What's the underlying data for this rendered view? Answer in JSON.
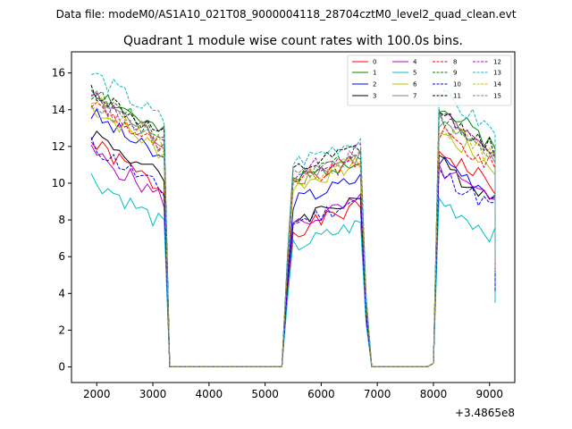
{
  "figure": {
    "suptitle": "Data file: modeM0/AS1A10_021T08_9000004118_28704cztM0_level2_quad_clean.evt"
  },
  "chart_data": {
    "type": "line",
    "title": "Quadrant 1 module wise count rates with 100.0s bins.",
    "xlabel": "",
    "ylabel": "",
    "x_offset_label": "+3.4865e8",
    "xlim": [
      1550,
      9450
    ],
    "ylim": [
      -0.85,
      17.15
    ],
    "xticks": [
      2000,
      3000,
      4000,
      5000,
      6000,
      7000,
      8000,
      9000
    ],
    "xtick_labels": [
      "2000",
      "3000",
      "4000",
      "5000",
      "6000",
      "7000",
      "8000",
      "9000"
    ],
    "yticks": [
      0,
      2,
      4,
      6,
      8,
      10,
      12,
      14,
      16
    ],
    "ytick_labels": [
      "0",
      "2",
      "4",
      "6",
      "8",
      "10",
      "12",
      "14",
      "16"
    ],
    "legend_location": "upper-right",
    "legend_columns": 4,
    "segments": [
      {
        "start": 1900,
        "n": 14
      },
      {
        "start": 3300,
        "n": 21
      },
      {
        "start": 5400,
        "n": 14
      },
      {
        "start": 6900,
        "n": 11
      },
      {
        "start": 8000,
        "n": 12
      }
    ],
    "series": [
      {
        "name": "0",
        "color": "#ff0000",
        "dash": "solid",
        "levels": [
          11.0,
          7.6,
          11.0
        ],
        "seed": 1
      },
      {
        "name": "1",
        "color": "#008000",
        "dash": "solid",
        "levels": [
          14.0,
          10.3,
          13.3
        ],
        "seed": 2
      },
      {
        "name": "2",
        "color": "#0000ff",
        "dash": "solid",
        "levels": [
          12.6,
          9.2,
          10.6
        ],
        "seed": 3
      },
      {
        "name": "3",
        "color": "#000000",
        "dash": "solid",
        "levels": [
          11.6,
          8.2,
          10.3
        ],
        "seed": 4
      },
      {
        "name": "4",
        "color": "#bf00bf",
        "dash": "solid",
        "levels": [
          10.5,
          7.9,
          10.0
        ],
        "seed": 5
      },
      {
        "name": "5",
        "color": "#00bfbf",
        "dash": "solid",
        "levels": [
          9.1,
          6.7,
          8.3
        ],
        "seed": 6
      },
      {
        "name": "6",
        "color": "#bfbf00",
        "dash": "solid",
        "levels": [
          13.0,
          10.0,
          12.0
        ],
        "seed": 7
      },
      {
        "name": "7",
        "color": "#808080",
        "dash": "solid",
        "levels": [
          13.6,
          10.4,
          12.5
        ],
        "seed": 8
      },
      {
        "name": "8",
        "color": "#ff0000",
        "dash": "dashed",
        "levels": [
          13.2,
          10.1,
          12.0
        ],
        "seed": 9
      },
      {
        "name": "9",
        "color": "#008000",
        "dash": "dashed",
        "levels": [
          13.8,
          10.6,
          12.8
        ],
        "seed": 10
      },
      {
        "name": "10",
        "color": "#0000ff",
        "dash": "dashed",
        "levels": [
          10.9,
          8.0,
          9.8
        ],
        "seed": 11
      },
      {
        "name": "11",
        "color": "#000000",
        "dash": "dashed",
        "levels": [
          13.9,
          10.8,
          13.0
        ],
        "seed": 12
      },
      {
        "name": "12",
        "color": "#bf00bf",
        "dash": "dashed",
        "levels": [
          13.5,
          10.7,
          12.9
        ],
        "seed": 13
      },
      {
        "name": "13",
        "color": "#00bfbf",
        "dash": "dashed",
        "levels": [
          14.8,
          11.3,
          14.0
        ],
        "seed": 14
      },
      {
        "name": "14",
        "color": "#bfbf00",
        "dash": "dashed",
        "levels": [
          13.4,
          10.3,
          12.5
        ],
        "seed": 15
      },
      {
        "name": "15",
        "color": "#808080",
        "dash": "dashed",
        "levels": [
          13.3,
          10.5,
          12.6
        ],
        "seed": 16
      }
    ]
  }
}
